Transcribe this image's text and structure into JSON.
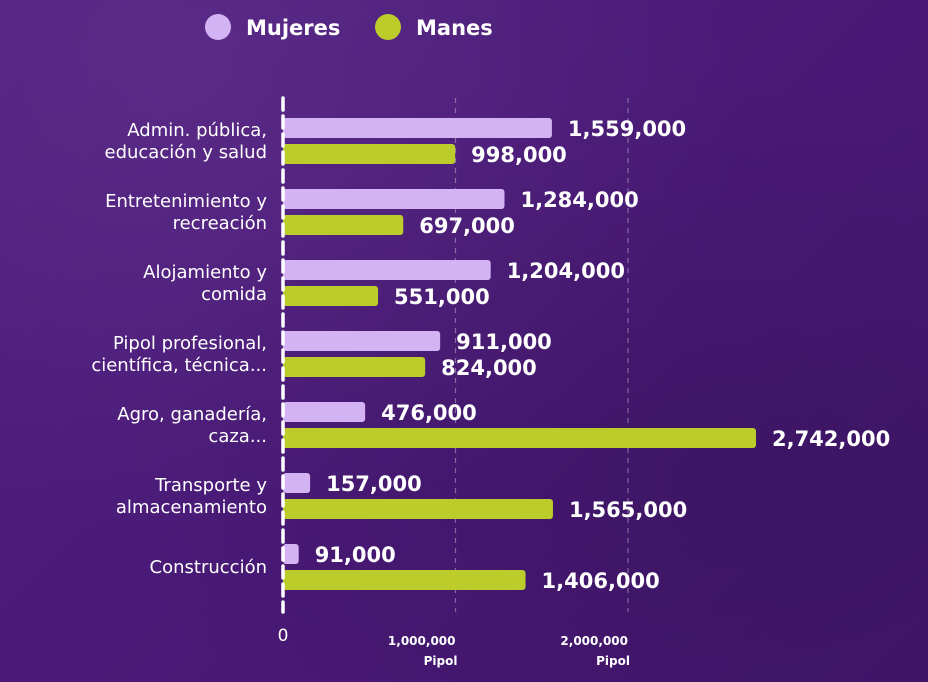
{
  "chart_data": {
    "type": "bar",
    "orientation": "horizontal",
    "categories": [
      [
        "Admin. pública,",
        "educación y salud"
      ],
      [
        "Entretenimiento y",
        "recreación"
      ],
      [
        "Alojamiento y",
        "comida"
      ],
      [
        "Pipol profesional,",
        "científica, técnica..."
      ],
      [
        "Agro, ganadería,",
        "caza..."
      ],
      [
        "Transporte y",
        "almacenamiento"
      ],
      [
        "Construcción"
      ]
    ],
    "series": [
      {
        "name": "Mujeres",
        "color": "#d4b3f5",
        "values": [
          1559000,
          1284000,
          1204000,
          911000,
          476000,
          157000,
          91000
        ],
        "labels": [
          "1,559,000",
          "1,284,000",
          "1,204,000",
          "911,000",
          "476,000",
          "157,000",
          "91,000"
        ]
      },
      {
        "name": "Manes",
        "color": "#bccc2b",
        "values": [
          998000,
          697000,
          551000,
          824000,
          2742000,
          1565000,
          1406000
        ],
        "labels": [
          "998,000",
          "697,000",
          "551,000",
          "824,000",
          "2,742,000",
          "1,565,000",
          "1,406,000"
        ]
      }
    ],
    "xlim": [
      0,
      2742000
    ],
    "xticks": [
      {
        "value": 0,
        "label": "0",
        "unit": ""
      },
      {
        "value": 1000000,
        "label": "1,000,000",
        "unit": "Pipol"
      },
      {
        "value": 2000000,
        "label": "2,000,000",
        "unit": "Pipol"
      }
    ],
    "legend_position": "top"
  }
}
